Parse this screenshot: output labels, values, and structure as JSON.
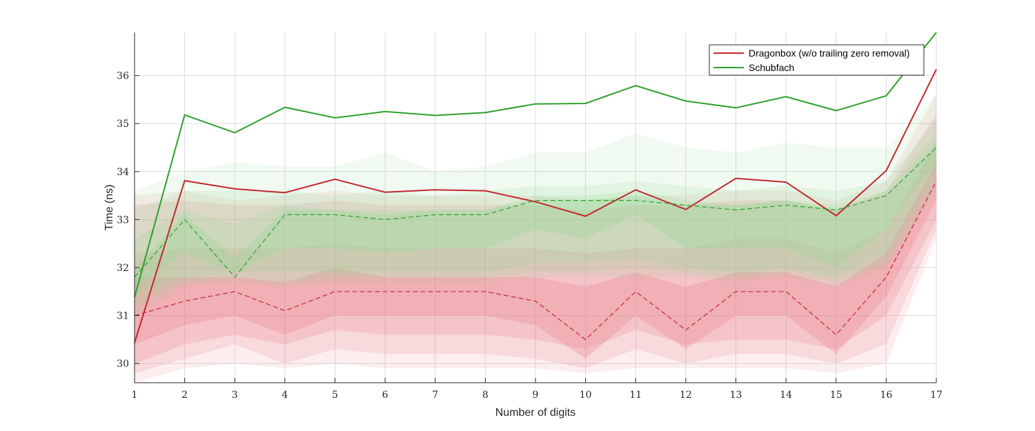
{
  "chart_data": {
    "type": "line",
    "title": "",
    "xlabel": "Number of digits",
    "ylabel": "Time (ns)",
    "xlim": [
      1,
      17
    ],
    "ylim": [
      29.6,
      36.9
    ],
    "xticks": [
      1,
      2,
      3,
      4,
      5,
      6,
      7,
      8,
      9,
      10,
      11,
      12,
      13,
      14,
      15,
      16,
      17
    ],
    "yticks": [
      30,
      31,
      32,
      33,
      34,
      35,
      36
    ],
    "grid": true,
    "legend_position": "top-right",
    "x": [
      1,
      2,
      3,
      4,
      5,
      6,
      7,
      8,
      9,
      10,
      11,
      12,
      13,
      14,
      15,
      16,
      17
    ],
    "series": [
      {
        "name": "Dragonbox (w/o trailing zero removal)",
        "color": "#c1272d",
        "band_color": "#e8737f",
        "mean": [
          30.43,
          33.81,
          33.64,
          33.56,
          33.84,
          33.57,
          33.62,
          33.6,
          33.37,
          33.07,
          33.62,
          33.21,
          33.86,
          33.78,
          33.08,
          34.02,
          36.13
        ],
        "median": [
          31.0,
          31.3,
          31.5,
          31.1,
          31.5,
          31.5,
          31.5,
          31.5,
          31.3,
          30.5,
          31.5,
          30.7,
          31.5,
          31.5,
          30.6,
          31.8,
          33.8
        ],
        "bands": [
          {
            "low": [
              29.6,
              29.9,
              30.0,
              29.9,
              30.0,
              29.9,
              29.9,
              29.9,
              29.9,
              29.8,
              29.9,
              29.9,
              29.9,
              29.9,
              29.8,
              30.0,
              32.6
            ],
            "high": [
              33.5,
              33.6,
              33.4,
              33.5,
              33.6,
              33.5,
              33.5,
              33.5,
              33.5,
              33.4,
              33.5,
              33.5,
              33.6,
              33.6,
              33.4,
              33.8,
              35.6
            ]
          },
          {
            "low": [
              29.8,
              30.1,
              30.4,
              30.0,
              30.3,
              30.2,
              30.2,
              30.2,
              30.1,
              29.9,
              30.3,
              30.0,
              30.2,
              30.2,
              30.0,
              30.4,
              32.8
            ],
            "high": [
              33.3,
              33.4,
              33.3,
              33.3,
              33.4,
              33.3,
              33.3,
              33.3,
              33.3,
              33.2,
              33.3,
              33.3,
              33.4,
              33.4,
              33.2,
              33.6,
              35.2
            ]
          },
          {
            "low": [
              30.0,
              30.4,
              30.6,
              30.4,
              30.7,
              30.6,
              30.6,
              30.6,
              30.5,
              30.3,
              30.7,
              30.4,
              30.5,
              30.5,
              30.3,
              31.0,
              33.0
            ],
            "high": [
              32.3,
              32.4,
              32.4,
              32.4,
              32.5,
              32.4,
              32.4,
              32.4,
              32.4,
              32.3,
              32.4,
              32.4,
              32.6,
              32.6,
              32.3,
              32.8,
              34.6
            ]
          },
          {
            "low": [
              30.4,
              30.8,
              31.0,
              30.6,
              31.0,
              31.0,
              31.0,
              31.0,
              30.8,
              30.1,
              31.0,
              30.3,
              31.0,
              31.0,
              30.2,
              31.4,
              33.4
            ],
            "high": [
              31.8,
              31.8,
              31.8,
              31.7,
              32.0,
              31.8,
              31.8,
              31.8,
              31.8,
              31.6,
              31.9,
              31.6,
              31.9,
              31.9,
              31.6,
              32.3,
              34.2
            ]
          }
        ]
      },
      {
        "name": "Schubfach",
        "color": "#2ca02c",
        "band_color": "#8fd98f",
        "mean": [
          31.38,
          35.18,
          34.81,
          35.34,
          35.12,
          35.25,
          35.17,
          35.23,
          35.41,
          35.42,
          35.79,
          35.47,
          35.33,
          35.56,
          35.27,
          35.58,
          36.9
        ],
        "median": [
          31.8,
          33.0,
          31.8,
          33.1,
          33.1,
          33.0,
          33.1,
          33.1,
          33.4,
          33.4,
          33.4,
          33.3,
          33.2,
          33.3,
          33.2,
          33.5,
          34.5
        ],
        "bands": [
          {
            "low": [
              31.0,
              31.6,
              31.7,
              31.6,
              31.7,
              31.7,
              31.7,
              31.7,
              31.8,
              31.8,
              31.8,
              31.8,
              31.7,
              31.8,
              31.6,
              32.0,
              33.6
            ],
            "high": [
              33.6,
              34.0,
              34.2,
              34.1,
              34.1,
              34.4,
              34.0,
              34.1,
              34.4,
              34.4,
              34.8,
              34.5,
              34.4,
              34.6,
              34.5,
              34.5,
              35.6
            ]
          },
          {
            "low": [
              31.2,
              31.7,
              31.8,
              31.7,
              31.8,
              31.8,
              31.8,
              31.8,
              31.9,
              31.9,
              32.0,
              31.9,
              31.8,
              31.9,
              31.7,
              32.1,
              33.8
            ],
            "high": [
              33.2,
              33.6,
              33.6,
              33.6,
              33.5,
              33.6,
              33.5,
              33.6,
              33.7,
              33.7,
              33.8,
              33.7,
              33.6,
              33.7,
              33.6,
              33.8,
              35.1
            ]
          },
          {
            "low": [
              31.4,
              31.8,
              31.9,
              31.9,
              31.9,
              31.9,
              31.9,
              31.9,
              32.1,
              32.1,
              32.2,
              32.0,
              31.9,
              32.0,
              31.8,
              32.3,
              34.0
            ],
            "high": [
              32.6,
              33.2,
              32.9,
              33.3,
              33.2,
              33.2,
              33.2,
              33.2,
              33.5,
              33.5,
              33.6,
              33.4,
              33.3,
              33.4,
              33.3,
              33.6,
              34.8
            ]
          },
          {
            "low": [
              31.6,
              32.3,
              31.9,
              32.4,
              32.4,
              32.3,
              32.4,
              32.4,
              32.8,
              32.6,
              33.1,
              32.4,
              32.4,
              32.4,
              32.0,
              32.8,
              34.2
            ],
            "high": [
              32.0,
              33.1,
              32.2,
              33.2,
              33.2,
              33.1,
              33.2,
              33.2,
              33.4,
              33.4,
              33.5,
              33.3,
              33.3,
              33.4,
              33.2,
              33.5,
              34.6
            ]
          }
        ]
      }
    ]
  }
}
